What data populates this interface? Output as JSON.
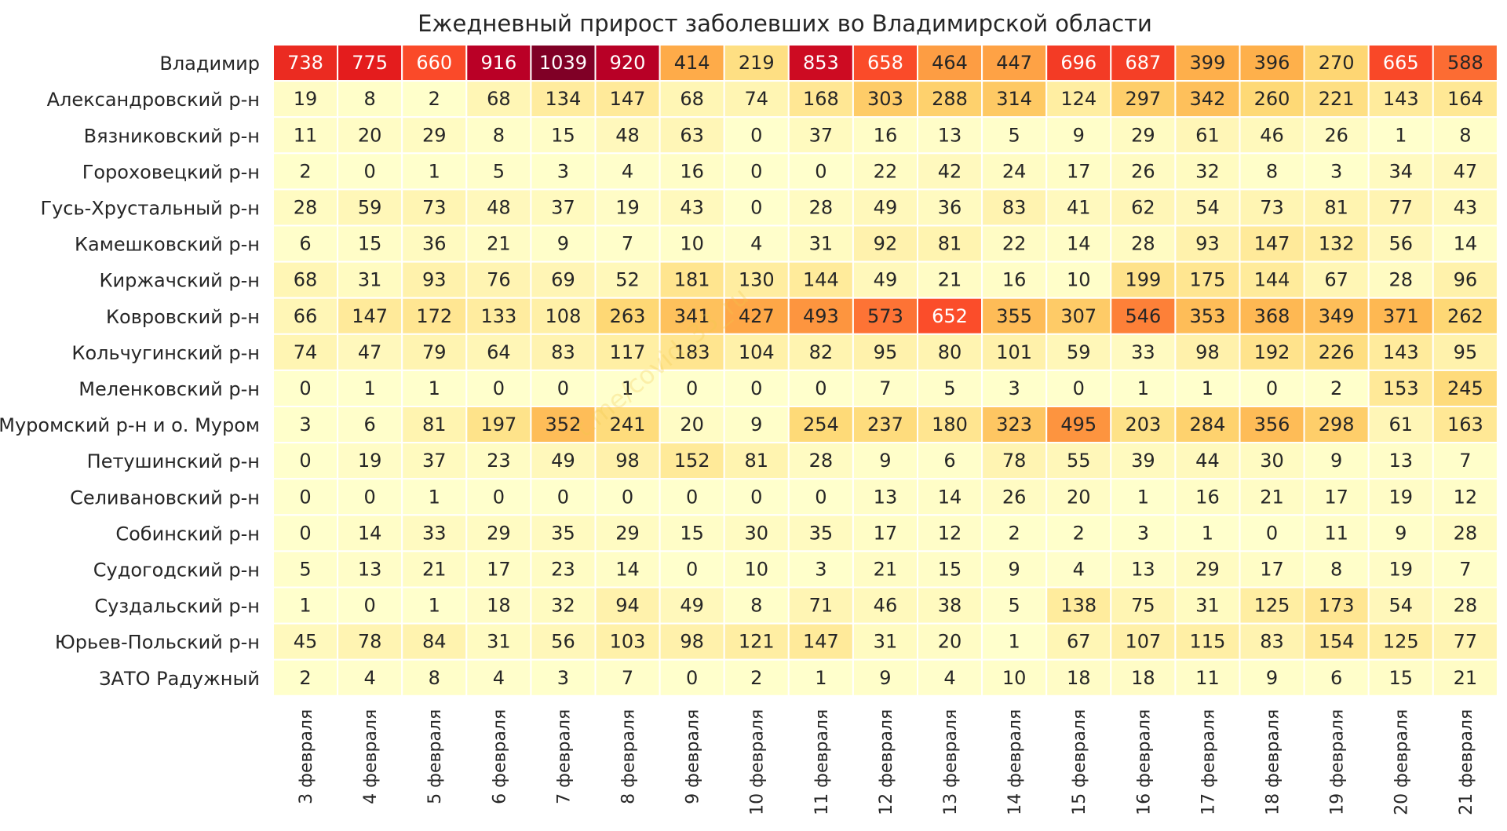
{
  "chart_data": {
    "type": "heatmap",
    "title": "Ежедневный прирост заболевших во Владимирской области",
    "watermark": "t.me/covid_33_ru",
    "colormap": "YlOrRd",
    "color_range": [
      0,
      1039
    ],
    "rows": [
      "Владимир",
      "Александровский р-н",
      "Вязниковский р-н",
      "Гороховецкий р-н",
      "Гусь-Хрустальный р-н",
      "Камешковский р-н",
      "Киржачский р-н",
      "Ковровский р-н",
      "Кольчугинский р-н",
      "Меленковский р-н",
      "Муромский р-н и о. Муром",
      "Петушинский р-н",
      "Селивановский р-н",
      "Собинский р-н",
      "Судогодский р-н",
      "Суздальский р-н",
      "Юрьев-Польский р-н",
      "ЗАТО Радужный"
    ],
    "columns": [
      "3 февраля",
      "4 февраля",
      "5 февраля",
      "6 февраля",
      "7 февраля",
      "8 февраля",
      "9 февраля",
      "10 февраля",
      "11 февраля",
      "12 февраля",
      "13 февраля",
      "14 февраля",
      "15 февраля",
      "16 февраля",
      "17 февраля",
      "18 февраля",
      "19 февраля",
      "20 февраля",
      "21 февраля"
    ],
    "values": [
      [
        738,
        775,
        660,
        916,
        1039,
        920,
        414,
        219,
        853,
        658,
        464,
        447,
        696,
        687,
        399,
        396,
        270,
        665,
        588
      ],
      [
        19,
        8,
        2,
        68,
        134,
        147,
        68,
        74,
        168,
        303,
        288,
        314,
        124,
        297,
        342,
        260,
        221,
        143,
        164
      ],
      [
        11,
        20,
        29,
        8,
        15,
        48,
        63,
        0,
        37,
        16,
        13,
        5,
        9,
        29,
        61,
        46,
        26,
        1,
        8
      ],
      [
        2,
        0,
        1,
        5,
        3,
        4,
        16,
        0,
        0,
        22,
        42,
        24,
        17,
        26,
        32,
        8,
        3,
        34,
        47
      ],
      [
        28,
        59,
        73,
        48,
        37,
        19,
        43,
        0,
        28,
        49,
        36,
        83,
        41,
        62,
        54,
        73,
        81,
        77,
        43
      ],
      [
        6,
        15,
        36,
        21,
        9,
        7,
        10,
        4,
        31,
        92,
        81,
        22,
        14,
        28,
        93,
        147,
        132,
        56,
        14
      ],
      [
        68,
        31,
        93,
        76,
        69,
        52,
        181,
        130,
        144,
        49,
        21,
        16,
        10,
        199,
        175,
        144,
        67,
        28,
        96
      ],
      [
        66,
        147,
        172,
        133,
        108,
        263,
        341,
        427,
        493,
        573,
        652,
        355,
        307,
        546,
        353,
        368,
        349,
        371,
        262
      ],
      [
        74,
        47,
        79,
        64,
        83,
        117,
        183,
        104,
        82,
        95,
        80,
        101,
        59,
        33,
        98,
        192,
        226,
        143,
        95
      ],
      [
        0,
        1,
        1,
        0,
        0,
        1,
        0,
        0,
        0,
        7,
        5,
        3,
        0,
        1,
        1,
        0,
        2,
        153,
        245
      ],
      [
        3,
        6,
        81,
        197,
        352,
        241,
        20,
        9,
        254,
        237,
        180,
        323,
        495,
        203,
        284,
        356,
        298,
        61,
        163
      ],
      [
        0,
        19,
        37,
        23,
        49,
        98,
        152,
        81,
        28,
        9,
        6,
        78,
        55,
        39,
        44,
        30,
        9,
        13,
        7
      ],
      [
        0,
        0,
        1,
        0,
        0,
        0,
        0,
        0,
        0,
        13,
        14,
        26,
        20,
        1,
        16,
        21,
        17,
        19,
        12
      ],
      [
        0,
        14,
        33,
        29,
        35,
        29,
        15,
        30,
        35,
        17,
        12,
        2,
        2,
        3,
        1,
        0,
        11,
        9,
        28
      ],
      [
        5,
        13,
        21,
        17,
        23,
        14,
        0,
        10,
        3,
        21,
        15,
        9,
        4,
        13,
        29,
        17,
        8,
        19,
        7
      ],
      [
        1,
        0,
        1,
        18,
        32,
        94,
        49,
        8,
        71,
        46,
        38,
        5,
        138,
        75,
        31,
        125,
        173,
        54,
        28
      ],
      [
        45,
        78,
        84,
        31,
        56,
        103,
        98,
        121,
        147,
        31,
        20,
        1,
        67,
        107,
        115,
        83,
        154,
        125,
        77
      ],
      [
        2,
        4,
        8,
        4,
        3,
        7,
        0,
        2,
        1,
        9,
        4,
        10,
        18,
        18,
        11,
        9,
        6,
        15,
        21
      ]
    ]
  }
}
